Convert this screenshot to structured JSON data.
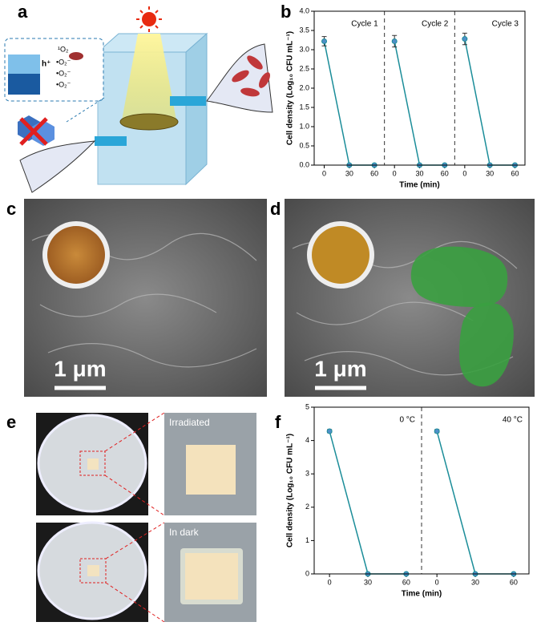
{
  "panel_labels": [
    "a",
    "b",
    "c",
    "d",
    "e",
    "f"
  ],
  "diagram": {
    "labels": [
      "¹O₂",
      "•O₂⁻",
      "•O₂⁻",
      "•O₂⁻",
      "h⁺",
      "e⁻"
    ]
  },
  "sem": {
    "scale_bars": [
      "1 μm",
      "1 μm"
    ]
  },
  "photos": {
    "labels": [
      "Irradiated",
      "In dark"
    ]
  },
  "chart_data": [
    {
      "type": "line",
      "ylabel": "Cell density (Log₁₀ CFU mL⁻¹)",
      "xlabel": "Time (min)",
      "color": "#1b8d99",
      "marker_color": "#4f8fc8",
      "xlim": [
        -12,
        72
      ],
      "xticks": [
        0,
        30,
        60
      ],
      "ylim": [
        0,
        4
      ],
      "yticks": [
        {
          "value": 0,
          "label": "0.0"
        },
        0.5,
        {
          "value": 1,
          "label": "1.0"
        },
        1.5,
        {
          "value": 2,
          "label": "2.0"
        },
        2.5,
        {
          "value": 3,
          "label": "3.0"
        },
        3.5,
        {
          "value": 4,
          "label": "4.0"
        }
      ],
      "panels": [
        {
          "label": "Cycle 1",
          "x": [
            0,
            30,
            60
          ],
          "values": [
            3.22,
            0,
            0
          ],
          "errors": [
            0.12,
            0.02,
            0.02
          ]
        },
        {
          "label": "Cycle 2",
          "x": [
            0,
            30,
            60
          ],
          "values": [
            3.22,
            0,
            0
          ],
          "errors": [
            0.15,
            0.02,
            0.02
          ]
        },
        {
          "label": "Cycle 3",
          "x": [
            0,
            30,
            60
          ],
          "values": [
            3.28,
            0,
            0
          ],
          "errors": [
            0.15,
            0.02,
            0.02
          ]
        }
      ]
    },
    {
      "type": "line",
      "ylabel": "Cell density (Log₁₀ CFU mL⁻¹)",
      "xlabel": "Time (min)",
      "color": "#1b8d99",
      "marker_color": "#4f8fc8",
      "xlim": [
        -12,
        72
      ],
      "xticks": [
        0,
        30,
        60
      ],
      "ylim": [
        0,
        5
      ],
      "yticks": [
        0,
        1,
        2,
        3,
        4,
        5
      ],
      "panels": [
        {
          "label": "0 °C",
          "x": [
            0,
            30,
            60
          ],
          "values": [
            4.28,
            0,
            0
          ],
          "errors": [
            0.05,
            0.02,
            0.02
          ]
        },
        {
          "label": "40 °C",
          "x": [
            0,
            30,
            60
          ],
          "values": [
            4.28,
            0,
            0
          ],
          "errors": [
            0.05,
            0.02,
            0.02
          ]
        }
      ]
    }
  ]
}
